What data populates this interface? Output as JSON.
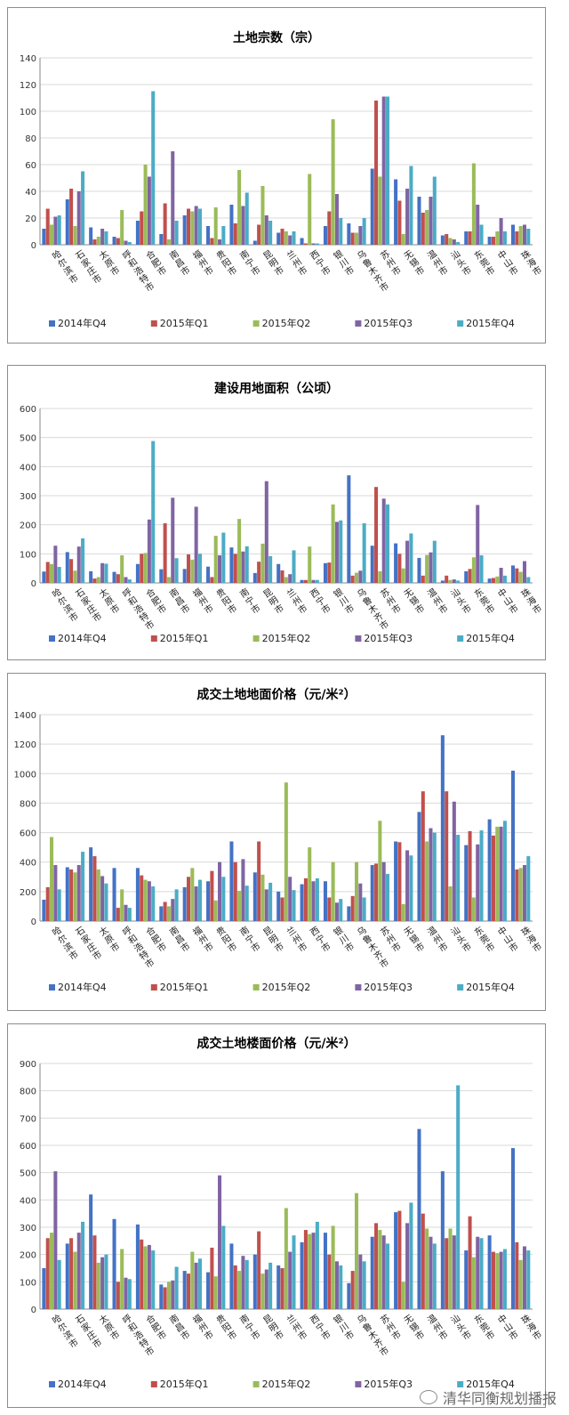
{
  "cities": [
    "哈尔滨市",
    "石家庄市",
    "太原市",
    "呼和浩特市",
    "合肥市",
    "南昌市",
    "福州市",
    "贵阳市",
    "南宁市",
    "昆明市",
    "兰州市",
    "西宁市",
    "银川市",
    "乌鲁木齐市",
    "苏州市",
    "无锡市",
    "温州市",
    "汕头市",
    "东莞市",
    "中山市",
    "珠海市"
  ],
  "series_names": [
    "2014年Q4",
    "2015年Q1",
    "2015年Q2",
    "2015年Q3",
    "2015年Q4"
  ],
  "series_colors": [
    "#4472c4",
    "#c0504d",
    "#9bbb59",
    "#8064a2",
    "#4bacc6"
  ],
  "watermark": "清华同衡规划播报",
  "chart_data": [
    {
      "type": "bar",
      "title": "土地宗数（宗）",
      "ylim": [
        0,
        140
      ],
      "yticks": [
        0,
        20,
        40,
        60,
        80,
        100,
        120,
        140
      ],
      "series": [
        {
          "name": "2014年Q4",
          "values": [
            12,
            34,
            13,
            6,
            18,
            8,
            22,
            14,
            30,
            3,
            9,
            5,
            14,
            16,
            57,
            49,
            36,
            7,
            10,
            6,
            15
          ]
        },
        {
          "name": "2015年Q1",
          "values": [
            27,
            42,
            4,
            5,
            25,
            31,
            27,
            5,
            16,
            15,
            12,
            1,
            25,
            9,
            108,
            33,
            24,
            8,
            10,
            6,
            10
          ]
        },
        {
          "name": "2015年Q2",
          "values": [
            15,
            14,
            6,
            26,
            60,
            4,
            25,
            28,
            56,
            44,
            10,
            53,
            94,
            9,
            51,
            8,
            26,
            5,
            61,
            10,
            14
          ]
        },
        {
          "name": "2015年Q3",
          "values": [
            21,
            40,
            12,
            3,
            51,
            70,
            29,
            4,
            29,
            22,
            7,
            1,
            38,
            14,
            111,
            42,
            36,
            4,
            30,
            20,
            15
          ]
        },
        {
          "name": "2015年Q4",
          "values": [
            22,
            55,
            10,
            2,
            115,
            18,
            27,
            14,
            39,
            18,
            10,
            1,
            20,
            20,
            111,
            59,
            51,
            2,
            15,
            10,
            12
          ]
        }
      ]
    },
    {
      "type": "bar",
      "title": "建设用地面积（公顷）",
      "ylim": [
        0,
        600
      ],
      "yticks": [
        0,
        100,
        200,
        300,
        400,
        500,
        600
      ],
      "series": [
        {
          "name": "2014年Q4",
          "values": [
            39,
            106,
            40,
            38,
            65,
            47,
            48,
            56,
            122,
            34,
            65,
            10,
            68,
            370,
            128,
            136,
            86,
            8,
            40,
            15,
            60
          ]
        },
        {
          "name": "2015年Q1",
          "values": [
            72,
            82,
            15,
            30,
            100,
            205,
            98,
            20,
            100,
            73,
            43,
            10,
            70,
            25,
            330,
            100,
            25,
            25,
            48,
            17,
            50
          ]
        },
        {
          "name": "2015年Q2",
          "values": [
            65,
            42,
            20,
            95,
            103,
            20,
            80,
            162,
            220,
            135,
            20,
            125,
            270,
            35,
            40,
            50,
            96,
            10,
            88,
            22,
            38
          ]
        },
        {
          "name": "2015年Q3",
          "values": [
            128,
            125,
            68,
            20,
            218,
            293,
            262,
            95,
            108,
            350,
            30,
            10,
            210,
            42,
            290,
            145,
            105,
            12,
            268,
            52,
            75
          ]
        },
        {
          "name": "2015年Q4",
          "values": [
            55,
            153,
            66,
            12,
            488,
            85,
            100,
            173,
            126,
            92,
            112,
            10,
            215,
            205,
            270,
            170,
            145,
            8,
            95,
            25,
            20
          ]
        }
      ]
    },
    {
      "type": "bar",
      "title": "成交土地地面价格（元/米²）",
      "ylim": [
        0,
        1400
      ],
      "yticks": [
        0,
        200,
        400,
        600,
        800,
        1000,
        1200,
        1400
      ],
      "series": [
        {
          "name": "2014年Q4",
          "values": [
            145,
            365,
            500,
            360,
            360,
            100,
            230,
            270,
            540,
            330,
            200,
            250,
            270,
            100,
            380,
            540,
            740,
            1260,
            515,
            690,
            1020
          ]
        },
        {
          "name": "2015年Q1",
          "values": [
            230,
            350,
            440,
            90,
            310,
            130,
            300,
            340,
            400,
            540,
            160,
            290,
            160,
            170,
            390,
            535,
            880,
            880,
            610,
            580,
            350
          ]
        },
        {
          "name": "2015年Q2",
          "values": [
            570,
            330,
            350,
            215,
            280,
            100,
            360,
            140,
            205,
            315,
            940,
            500,
            400,
            400,
            680,
            115,
            540,
            235,
            160,
            640,
            360
          ]
        },
        {
          "name": "2015年Q3",
          "values": [
            380,
            380,
            305,
            110,
            270,
            150,
            235,
            400,
            420,
            215,
            300,
            270,
            125,
            255,
            400,
            480,
            630,
            810,
            520,
            640,
            380
          ]
        },
        {
          "name": "2015年Q4",
          "values": [
            215,
            470,
            255,
            90,
            235,
            215,
            280,
            300,
            240,
            260,
            210,
            290,
            150,
            160,
            320,
            445,
            600,
            585,
            615,
            680,
            440
          ]
        }
      ]
    },
    {
      "type": "bar",
      "title": "成交土地楼面价格（元/米²）",
      "ylim": [
        0,
        900
      ],
      "yticks": [
        0,
        100,
        200,
        300,
        400,
        500,
        600,
        700,
        800,
        900
      ],
      "series": [
        {
          "name": "2014年Q4",
          "values": [
            150,
            240,
            420,
            330,
            310,
            90,
            140,
            135,
            240,
            200,
            160,
            245,
            280,
            95,
            265,
            355,
            660,
            505,
            215,
            270,
            590
          ]
        },
        {
          "name": "2015年Q1",
          "values": [
            260,
            260,
            270,
            100,
            255,
            80,
            130,
            225,
            160,
            285,
            150,
            290,
            200,
            140,
            315,
            360,
            350,
            260,
            340,
            210,
            245
          ]
        },
        {
          "name": "2015年Q2",
          "values": [
            280,
            210,
            170,
            220,
            230,
            100,
            210,
            120,
            140,
            130,
            370,
            275,
            305,
            425,
            290,
            100,
            295,
            295,
            190,
            205,
            180
          ]
        },
        {
          "name": "2015年Q3",
          "values": [
            505,
            280,
            190,
            115,
            235,
            105,
            170,
            490,
            195,
            145,
            210,
            280,
            175,
            200,
            270,
            315,
            265,
            270,
            265,
            210,
            230
          ]
        },
        {
          "name": "2015年Q4",
          "values": [
            180,
            320,
            200,
            110,
            215,
            155,
            185,
            305,
            180,
            170,
            270,
            320,
            160,
            175,
            240,
            390,
            240,
            820,
            260,
            220,
            215
          ]
        }
      ]
    }
  ]
}
